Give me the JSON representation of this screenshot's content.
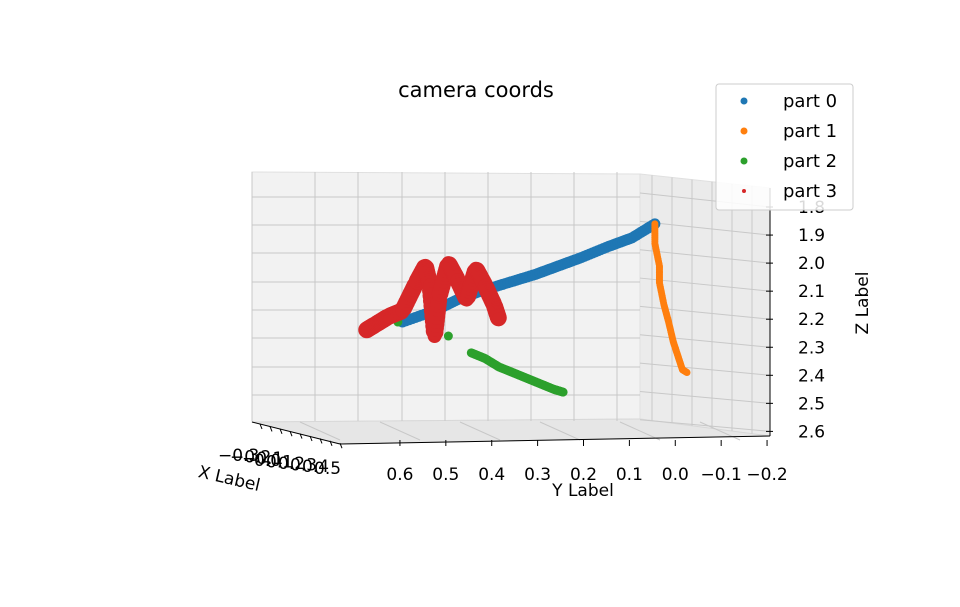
{
  "chart_data": {
    "type": "scatter",
    "projection": "3d",
    "title": "camera coords",
    "xlabel": "X Label",
    "ylabel": "Y Label",
    "zlabel": "Z Label",
    "x_ticks": [
      "−0.3",
      "−0.2",
      "−0.1",
      "0.0",
      "0.1",
      "0.2",
      "0.3",
      "0.4",
      "0.5"
    ],
    "y_ticks": [
      "0.6",
      "0.5",
      "0.4",
      "0.3",
      "0.2",
      "0.1",
      "0.0",
      "−0.1",
      "−0.2"
    ],
    "z_ticks": [
      "1.8",
      "1.9",
      "2.0",
      "2.1",
      "2.2",
      "2.3",
      "2.4",
      "2.5",
      "2.6"
    ],
    "ylim": [
      -0.25,
      0.65
    ],
    "zlim": [
      1.75,
      2.62
    ],
    "z_inverted": true,
    "grid": true,
    "legend_position": "top-right",
    "series": [
      {
        "name": "part 0",
        "color": "#1f77b4",
        "points": [
          {
            "y": 0.54,
            "z": 2.21
          },
          {
            "y": 0.47,
            "z": 2.17
          },
          {
            "y": 0.42,
            "z": 2.13
          },
          {
            "y": 0.37,
            "z": 2.1
          },
          {
            "y": 0.31,
            "z": 2.07
          },
          {
            "y": 0.25,
            "z": 2.04
          },
          {
            "y": 0.2,
            "z": 2.01
          },
          {
            "y": 0.15,
            "z": 1.98
          },
          {
            "y": 0.09,
            "z": 1.94
          },
          {
            "y": 0.04,
            "z": 1.91
          },
          {
            "y": -0.01,
            "z": 1.86
          }
        ]
      },
      {
        "name": "part 1",
        "color": "#ff7f0e",
        "points": [
          {
            "y": -0.01,
            "z": 1.86
          },
          {
            "y": -0.01,
            "z": 1.93
          },
          {
            "y": -0.02,
            "z": 2.01
          },
          {
            "y": -0.02,
            "z": 2.07
          },
          {
            "y": -0.03,
            "z": 2.15
          },
          {
            "y": -0.04,
            "z": 2.21
          },
          {
            "y": -0.05,
            "z": 2.28
          },
          {
            "y": -0.06,
            "z": 2.33
          },
          {
            "y": -0.07,
            "z": 2.38
          },
          {
            "y": -0.08,
            "z": 2.39
          }
        ]
      },
      {
        "name": "part 2",
        "color": "#2ca02c",
        "points": [
          {
            "y": 0.39,
            "z": 2.32
          },
          {
            "y": 0.36,
            "z": 2.34
          },
          {
            "y": 0.33,
            "z": 2.37
          },
          {
            "y": 0.3,
            "z": 2.39
          },
          {
            "y": 0.27,
            "z": 2.41
          },
          {
            "y": 0.24,
            "z": 2.43
          },
          {
            "y": 0.21,
            "z": 2.45
          },
          {
            "y": 0.19,
            "z": 2.46
          },
          {
            "y": 0.55,
            "z": 2.21
          },
          {
            "y": 0.44,
            "z": 2.26
          }
        ]
      },
      {
        "name": "part 3",
        "color": "#d62728",
        "points": [
          {
            "y": 0.62,
            "z": 2.24
          },
          {
            "y": 0.6,
            "z": 2.22
          },
          {
            "y": 0.57,
            "z": 2.19
          },
          {
            "y": 0.54,
            "z": 2.17
          },
          {
            "y": 0.51,
            "z": 2.07
          },
          {
            "y": 0.49,
            "z": 2.01
          },
          {
            "y": 0.48,
            "z": 2.08
          },
          {
            "y": 0.47,
            "z": 2.26
          },
          {
            "y": 0.46,
            "z": 2.12
          },
          {
            "y": 0.44,
            "z": 2.0
          },
          {
            "y": 0.42,
            "z": 2.06
          },
          {
            "y": 0.4,
            "z": 2.13
          },
          {
            "y": 0.38,
            "z": 2.02
          },
          {
            "y": 0.36,
            "z": 2.08
          },
          {
            "y": 0.34,
            "z": 2.15
          },
          {
            "y": 0.33,
            "z": 2.2
          }
        ]
      }
    ]
  }
}
